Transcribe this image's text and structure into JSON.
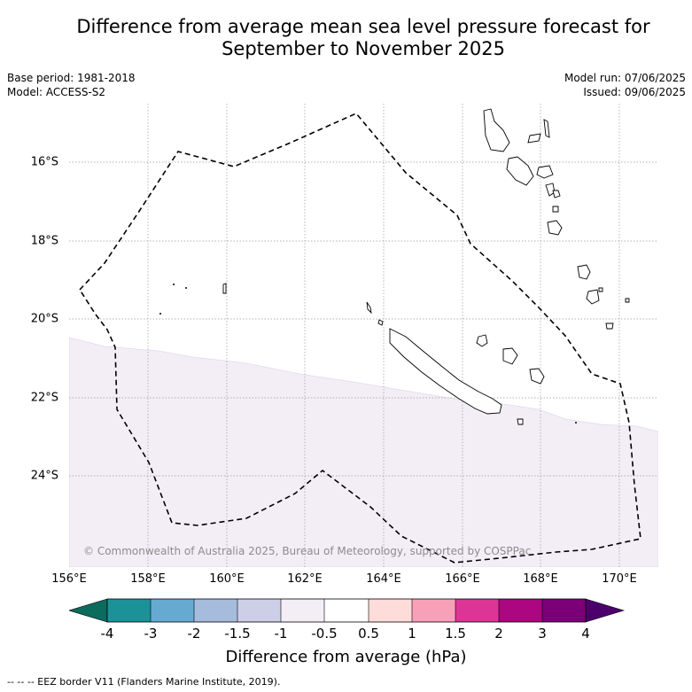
{
  "title_line1": "Difference from average mean sea level pressure forecast for",
  "title_line2": "September to November 2025",
  "base_period": "Base period: 1981-2018",
  "model": "Model: ACCESS-S2",
  "model_run": "Model run: 07/06/2025",
  "issued": "Issued: 09/06/2025",
  "credit": "© Commonwealth of Australia 2025, Bureau of Meteorology, supported by COSPPac",
  "lat_labels": [
    "16°S",
    "18°S",
    "20°S",
    "22°S",
    "24°S"
  ],
  "lon_labels": [
    "156°E",
    "158°E",
    "160°E",
    "162°E",
    "164°E",
    "166°E",
    "168°E",
    "170°E"
  ],
  "colorbar": {
    "title": "Difference from average (hPa)",
    "tick_labels": [
      "-4",
      "-3",
      "-2",
      "-1.5",
      "-1",
      "-0.5",
      "0.5",
      "1",
      "1.5",
      "2",
      "3",
      "4"
    ],
    "colors": [
      "#0b6b5c",
      "#1b9298",
      "#67aad1",
      "#a5bcdc",
      "#cccfe6",
      "#f3eef6",
      "#ffffff",
      "#fddcda",
      "#f9a0b9",
      "#dc3595",
      "#ac0680",
      "#7b0078",
      "#4c006b"
    ]
  },
  "footer": "-- -- -- EEZ border V11 (Flanders Marine Institute, 2019)."
}
